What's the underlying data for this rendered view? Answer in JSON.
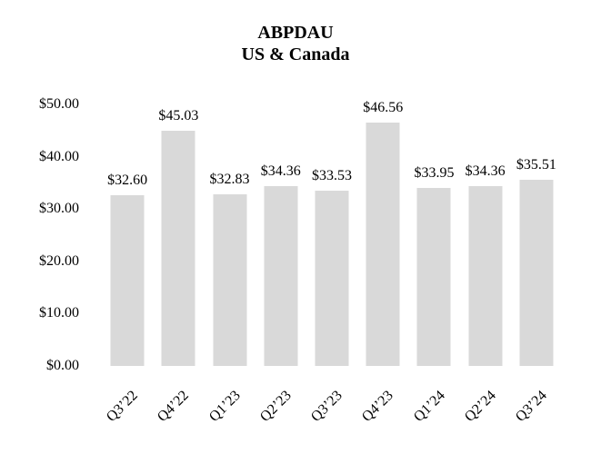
{
  "chart_data": {
    "type": "bar",
    "title": "ABPDAU",
    "subtitle": "US & Canada",
    "categories": [
      "Q3’22",
      "Q4’22",
      "Q1’23",
      "Q2’23",
      "Q3’23",
      "Q4’23",
      "Q1’24",
      "Q2’24",
      "Q3’24"
    ],
    "values": [
      32.6,
      45.03,
      32.83,
      34.36,
      33.53,
      46.56,
      33.95,
      34.36,
      35.51
    ],
    "value_labels": [
      "$32.60",
      "$45.03",
      "$32.83",
      "$34.36",
      "$33.53",
      "$46.56",
      "$33.95",
      "$34.36",
      "$35.51"
    ],
    "y_tick_values": [
      0,
      10,
      20,
      30,
      40,
      50
    ],
    "y_tick_labels": [
      "$0.00",
      "$10.00",
      "$20.00",
      "$30.00",
      "$40.00",
      "$50.00"
    ],
    "ylim": [
      0,
      50
    ],
    "xlabel": "",
    "ylabel": "",
    "grid": false,
    "legend_position": "none",
    "x_tick_rotation_deg": 45,
    "bar_color": "#d9d9d9",
    "text_color": "#000000",
    "background_color": "#ffffff"
  }
}
